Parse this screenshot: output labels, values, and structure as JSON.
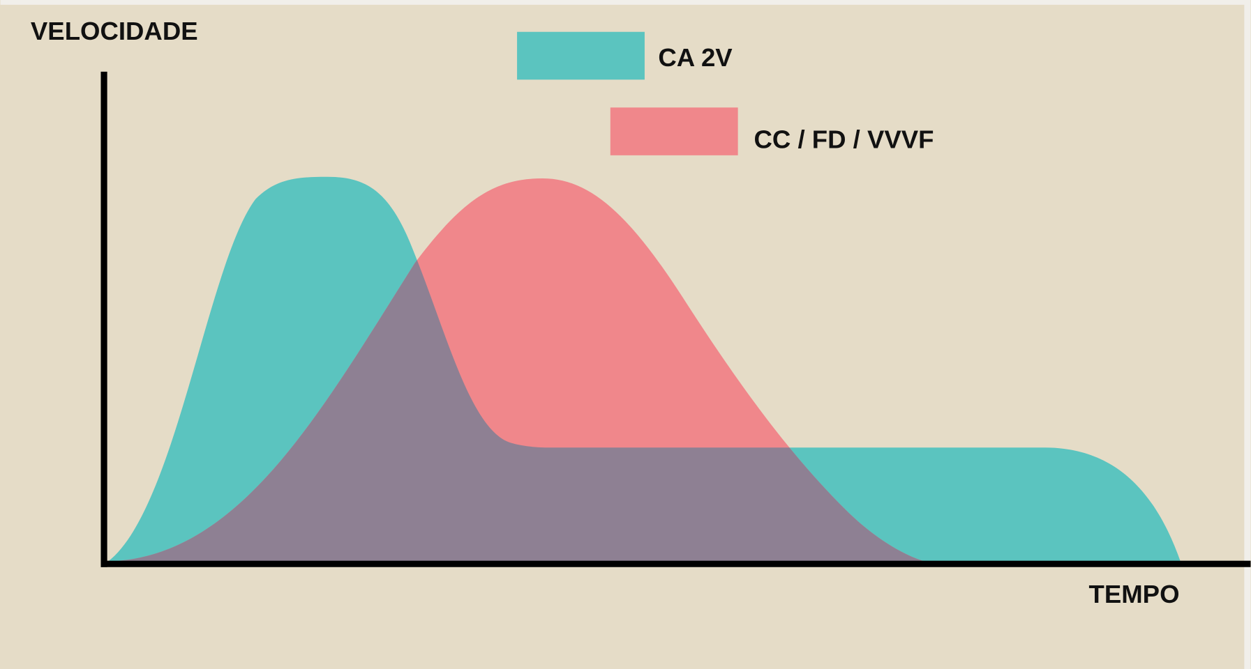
{
  "axes": {
    "y_label": "VELOCIDADE",
    "x_label": "TEMPO"
  },
  "legend": [
    {
      "label": "CA 2V"
    },
    {
      "label": "CC / FD / VVVF"
    }
  ]
}
